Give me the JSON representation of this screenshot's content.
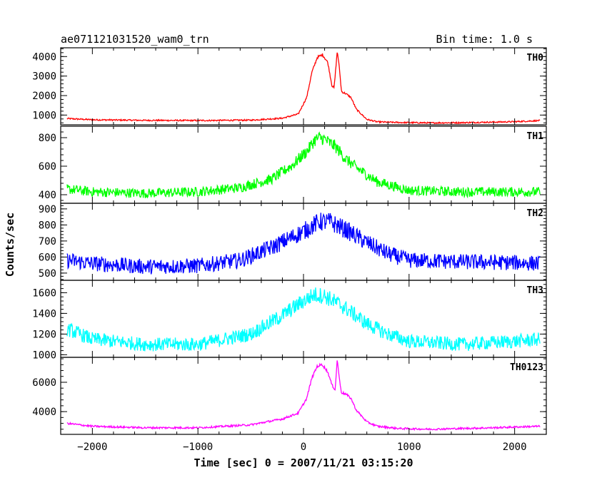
{
  "header": {
    "title": "ae071121031520_wam0_trn",
    "bin_time": "Bin time: 1.0 s"
  },
  "chart_data": {
    "type": "line",
    "xlabel": "Time [sec] 0 = 2007/11/21 03:15:20",
    "ylabel": "Counts/sec",
    "xlim": [
      -2300,
      2300
    ],
    "xticks": [
      -2000,
      -1000,
      0,
      1000,
      2000
    ],
    "grid": false,
    "panels": [
      {
        "name": "TH0",
        "color": "#ff0000",
        "ylim": [
          500,
          4450
        ],
        "yticks": [
          1000,
          2000,
          3000,
          4000
        ],
        "x": [
          -2240,
          -2000,
          -1500,
          -1000,
          -500,
          -200,
          -50,
          30,
          80,
          130,
          180,
          230,
          270,
          290,
          320,
          340,
          360,
          400,
          450,
          500,
          600,
          700,
          900,
          1200,
          1500,
          1800,
          2000,
          2240
        ],
        "y": [
          820,
          760,
          730,
          720,
          740,
          840,
          1050,
          1900,
          3200,
          3950,
          4100,
          3700,
          2500,
          2400,
          4300,
          3400,
          2200,
          2100,
          1900,
          1300,
          780,
          650,
          620,
          600,
          610,
          640,
          660,
          720
        ],
        "noise": 50
      },
      {
        "name": "TH1",
        "color": "#00ff00",
        "ylim": [
          340,
          880
        ],
        "yticks": [
          400,
          600,
          800
        ],
        "x": [
          -2240,
          -2000,
          -1500,
          -1000,
          -600,
          -300,
          -100,
          50,
          100,
          150,
          200,
          250,
          300,
          400,
          500,
          700,
          1000,
          1500,
          2000,
          2240
        ],
        "y": [
          440,
          420,
          410,
          420,
          450,
          510,
          610,
          720,
          780,
          800,
          790,
          760,
          740,
          650,
          590,
          490,
          430,
          420,
          420,
          420
        ],
        "noise": 35
      },
      {
        "name": "TH2",
        "color": "#0000ff",
        "ylim": [
          455,
          935
        ],
        "yticks": [
          500,
          600,
          700,
          800,
          900
        ],
        "x": [
          -2240,
          -2000,
          -1500,
          -1000,
          -600,
          -300,
          0,
          150,
          250,
          400,
          600,
          800,
          1000,
          1500,
          2000,
          2240
        ],
        "y": [
          580,
          560,
          540,
          545,
          580,
          660,
          760,
          820,
          820,
          770,
          690,
          620,
          580,
          570,
          565,
          560
        ],
        "noise": 45
      },
      {
        "name": "TH3",
        "color": "#00ffff",
        "ylim": [
          975,
          1720
        ],
        "yticks": [
          1000,
          1200,
          1400,
          1600
        ],
        "x": [
          -2240,
          -2000,
          -1500,
          -1000,
          -500,
          -200,
          0,
          100,
          200,
          400,
          600,
          800,
          1000,
          1500,
          2000,
          2240
        ],
        "y": [
          1250,
          1150,
          1100,
          1100,
          1200,
          1380,
          1520,
          1580,
          1570,
          1450,
          1300,
          1200,
          1130,
          1100,
          1130,
          1150
        ],
        "noise": 60
      },
      {
        "name": "TH0123",
        "color": "#ff00ff",
        "ylim": [
          2450,
          7700
        ],
        "yticks": [
          4000,
          6000
        ],
        "x": [
          -2240,
          -2000,
          -1500,
          -1000,
          -500,
          -200,
          -50,
          30,
          80,
          130,
          180,
          230,
          270,
          300,
          320,
          340,
          360,
          400,
          450,
          500,
          600,
          700,
          900,
          1200,
          1500,
          1800,
          2000,
          2240
        ],
        "y": [
          3200,
          3000,
          2900,
          2900,
          3100,
          3500,
          3900,
          4900,
          6300,
          7100,
          7200,
          6700,
          5800,
          5500,
          7600,
          6200,
          5300,
          5200,
          4900,
          4100,
          3300,
          3000,
          2850,
          2800,
          2850,
          2900,
          2950,
          3000
        ],
        "noise": 70
      }
    ]
  }
}
